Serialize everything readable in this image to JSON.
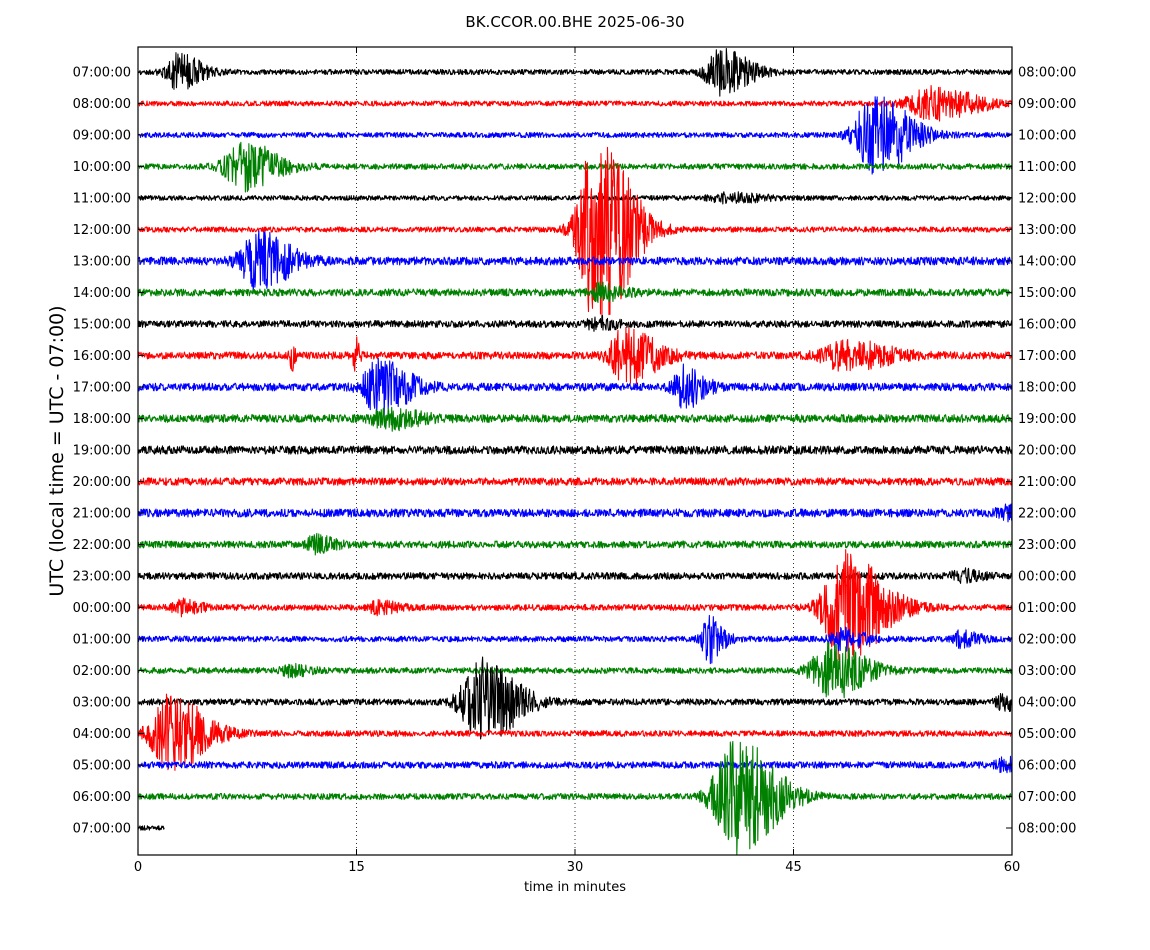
{
  "chart_data": {
    "type": "line",
    "title": "BK.CCOR.00.BHE 2025-06-30",
    "xlabel": "time in minutes",
    "ylabel": "UTC (local time = UTC - 07:00)",
    "xlim": [
      0,
      60
    ],
    "x_ticks": [
      0,
      15,
      30,
      45,
      60
    ],
    "grid": "vertical dotted lines at 15, 30, 45 minutes",
    "colors": [
      "#000000",
      "#ff0000",
      "#0000ff",
      "#008000"
    ],
    "left_labels": [
      "07:00:00",
      "08:00:00",
      "09:00:00",
      "10:00:00",
      "11:00:00",
      "12:00:00",
      "13:00:00",
      "14:00:00",
      "15:00:00",
      "16:00:00",
      "17:00:00",
      "18:00:00",
      "19:00:00",
      "20:00:00",
      "21:00:00",
      "22:00:00",
      "23:00:00",
      "00:00:00",
      "01:00:00",
      "02:00:00",
      "03:00:00",
      "04:00:00",
      "05:00:00",
      "06:00:00",
      "07:00:00"
    ],
    "right_labels": [
      "08:00:00",
      "09:00:00",
      "10:00:00",
      "11:00:00",
      "12:00:00",
      "13:00:00",
      "14:00:00",
      "15:00:00",
      "16:00:00",
      "17:00:00",
      "18:00:00",
      "19:00:00",
      "20:00:00",
      "21:00:00",
      "22:00:00",
      "23:00:00",
      "00:00:00",
      "01:00:00",
      "02:00:00",
      "03:00:00",
      "04:00:00",
      "05:00:00",
      "06:00:00",
      "07:00:00",
      "08:00:00"
    ],
    "traces": [
      {
        "noise": 2.6,
        "end_minute": 60,
        "events": [
          {
            "t": 2.7,
            "amp": 18,
            "w": 1.3
          },
          {
            "t": 40,
            "amp": 22,
            "w": 1.6
          }
        ]
      },
      {
        "noise": 2.5,
        "end_minute": 60,
        "events": [
          {
            "t": 54.5,
            "amp": 16,
            "w": 2.5
          }
        ]
      },
      {
        "noise": 2.6,
        "end_minute": 60,
        "events": [
          {
            "t": 50.5,
            "amp": 40,
            "w": 2.0
          }
        ]
      },
      {
        "noise": 2.8,
        "end_minute": 60,
        "events": [
          {
            "t": 7.2,
            "amp": 24,
            "w": 1.9
          }
        ]
      },
      {
        "noise": 2.4,
        "end_minute": 60,
        "events": [
          {
            "t": 40.5,
            "amp": 4,
            "w": 2.0
          }
        ]
      },
      {
        "noise": 2.6,
        "end_minute": 60,
        "events": [
          {
            "t": 31.5,
            "amp": 100,
            "w": 1.9
          }
        ]
      },
      {
        "noise": 4.0,
        "end_minute": 60,
        "events": [
          {
            "t": 8.2,
            "amp": 28,
            "w": 1.8
          }
        ]
      },
      {
        "noise": 3.6,
        "end_minute": 60,
        "events": [
          {
            "t": 31.8,
            "amp": 8,
            "w": 1.2
          }
        ]
      },
      {
        "noise": 3.4,
        "end_minute": 60,
        "events": [
          {
            "t": 31.5,
            "amp": 6,
            "w": 1.0
          }
        ]
      },
      {
        "noise": 3.6,
        "end_minute": 60,
        "events": [
          {
            "t": 33.5,
            "amp": 28,
            "w": 1.7
          },
          {
            "t": 48.5,
            "amp": 14,
            "w": 2.5
          },
          {
            "t": 10.5,
            "amp": 18,
            "w": 0.2
          },
          {
            "t": 14.9,
            "amp": 22,
            "w": 0.2
          }
        ]
      },
      {
        "noise": 3.9,
        "end_minute": 60,
        "events": [
          {
            "t": 16.5,
            "amp": 26,
            "w": 1.7
          },
          {
            "t": 37.5,
            "amp": 20,
            "w": 1.1
          }
        ]
      },
      {
        "noise": 3.9,
        "end_minute": 60,
        "events": [
          {
            "t": 17.2,
            "amp": 9,
            "w": 1.8
          }
        ]
      },
      {
        "noise": 4.1,
        "end_minute": 60,
        "events": []
      },
      {
        "noise": 3.7,
        "end_minute": 60,
        "events": []
      },
      {
        "noise": 4.0,
        "end_minute": 60,
        "events": [
          {
            "t": 59.5,
            "amp": 6,
            "w": 1.0
          }
        ]
      },
      {
        "noise": 3.5,
        "end_minute": 60,
        "events": [
          {
            "t": 12.2,
            "amp": 8,
            "w": 1.0
          }
        ]
      },
      {
        "noise": 3.4,
        "end_minute": 60,
        "events": [
          {
            "t": 56.5,
            "amp": 5,
            "w": 1.0
          }
        ]
      },
      {
        "noise": 3.0,
        "end_minute": 60,
        "events": [
          {
            "t": 48.5,
            "amp": 55,
            "w": 2.2
          },
          {
            "t": 3,
            "amp": 7,
            "w": 1.0
          },
          {
            "t": 16.5,
            "amp": 6,
            "w": 1.0
          }
        ]
      },
      {
        "noise": 2.8,
        "end_minute": 60,
        "events": [
          {
            "t": 39.2,
            "amp": 22,
            "w": 0.8
          },
          {
            "t": 48.3,
            "amp": 10,
            "w": 1.2
          },
          {
            "t": 56.5,
            "amp": 7,
            "w": 1.0
          }
        ]
      },
      {
        "noise": 2.9,
        "end_minute": 60,
        "events": [
          {
            "t": 47.5,
            "amp": 28,
            "w": 1.9
          },
          {
            "t": 10.5,
            "amp": 5,
            "w": 1.0
          }
        ]
      },
      {
        "noise": 3.1,
        "end_minute": 60,
        "events": [
          {
            "t": 23.5,
            "amp": 42,
            "w": 2.0
          },
          {
            "t": 59.5,
            "amp": 8,
            "w": 1.0
          }
        ]
      },
      {
        "noise": 2.9,
        "end_minute": 60,
        "events": [
          {
            "t": 2.2,
            "amp": 38,
            "w": 2.0
          }
        ]
      },
      {
        "noise": 3.3,
        "end_minute": 60,
        "events": [
          {
            "t": 59.5,
            "amp": 6,
            "w": 1.0
          }
        ]
      },
      {
        "noise": 3.0,
        "end_minute": 60,
        "events": [
          {
            "t": 41,
            "amp": 60,
            "w": 2.2
          }
        ]
      },
      {
        "noise": 2.3,
        "end_minute": 1.8,
        "events": []
      }
    ]
  }
}
